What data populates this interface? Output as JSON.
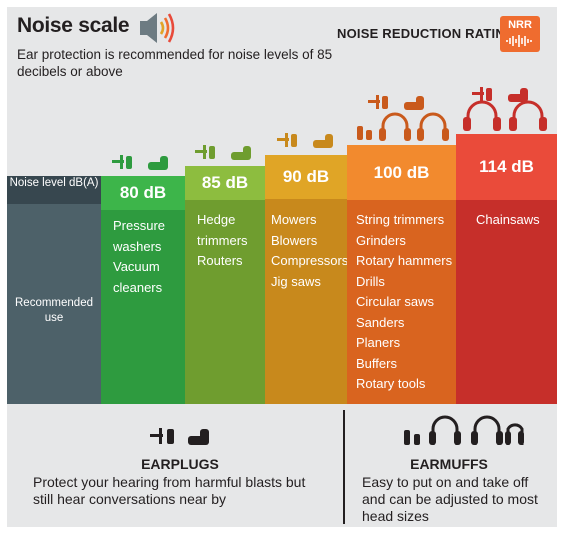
{
  "header": {
    "title": "Noise scale",
    "subtitle": "Ear protection is recommended for noise levels of 85 decibels or above",
    "nrr_label": "NOISE REDUCTION RATING",
    "nrr_badge": "NRR",
    "speaker_icon": "speaker-icon",
    "soundwave_icon": "soundwave-icon"
  },
  "rows": {
    "noise_level": "Noise level dB(A)",
    "recommended_use": "Recommended use"
  },
  "levels": [
    {
      "level": "80 dB",
      "color_header": "#3db54a",
      "color_body": "#2e9b3f",
      "uses": [
        "Pressure",
        "washers",
        "Vacuum",
        "cleaners"
      ],
      "earplugs": 2,
      "earmuffs": 0
    },
    {
      "level": "85 dB",
      "color_header": "#8dbd3f",
      "color_body": "#6f9d2f",
      "uses": [
        "Hedge",
        "trimmers",
        "Routers"
      ],
      "earplugs": 3,
      "earmuffs": 0
    },
    {
      "level": "90 dB",
      "color_header": "#e0a526",
      "color_body": "#c8891c",
      "uses": [
        "Mowers",
        "Blowers",
        "Compressors",
        "Jig saws"
      ],
      "earplugs": 3,
      "earmuffs": 0
    },
    {
      "level": "100 dB",
      "color_header": "#f28a2e",
      "color_body": "#d9641f",
      "uses": [
        "String trimmers",
        "Grinders",
        "Rotary hammers",
        "Drills",
        "Circular saws",
        "Sanders",
        "Planers",
        "Buffers",
        "Rotary tools"
      ],
      "earplugs": 3,
      "earmuffs": 4
    },
    {
      "level": "114 dB",
      "color_header": "#ea4b3a",
      "color_body": "#c62f2a",
      "uses": [
        "Chainsaws"
      ],
      "earplugs": 3,
      "earmuffs": 2
    }
  ],
  "earplugs": {
    "title": "EARPLUGS",
    "text": "Protect your hearing from harmful blasts but still hear conversations near by"
  },
  "earmuffs": {
    "title": "EARMUFFS",
    "text": "Easy to put on and take off and can be adjusted to most head sizes"
  },
  "colors": {
    "icon_green": "#2e9b3f",
    "icon_olive": "#6f9d2f",
    "icon_gold": "#c8891c",
    "icon_orange": "#c95a1c",
    "icon_red": "#c62f2a",
    "icon_dark": "#231f20"
  }
}
